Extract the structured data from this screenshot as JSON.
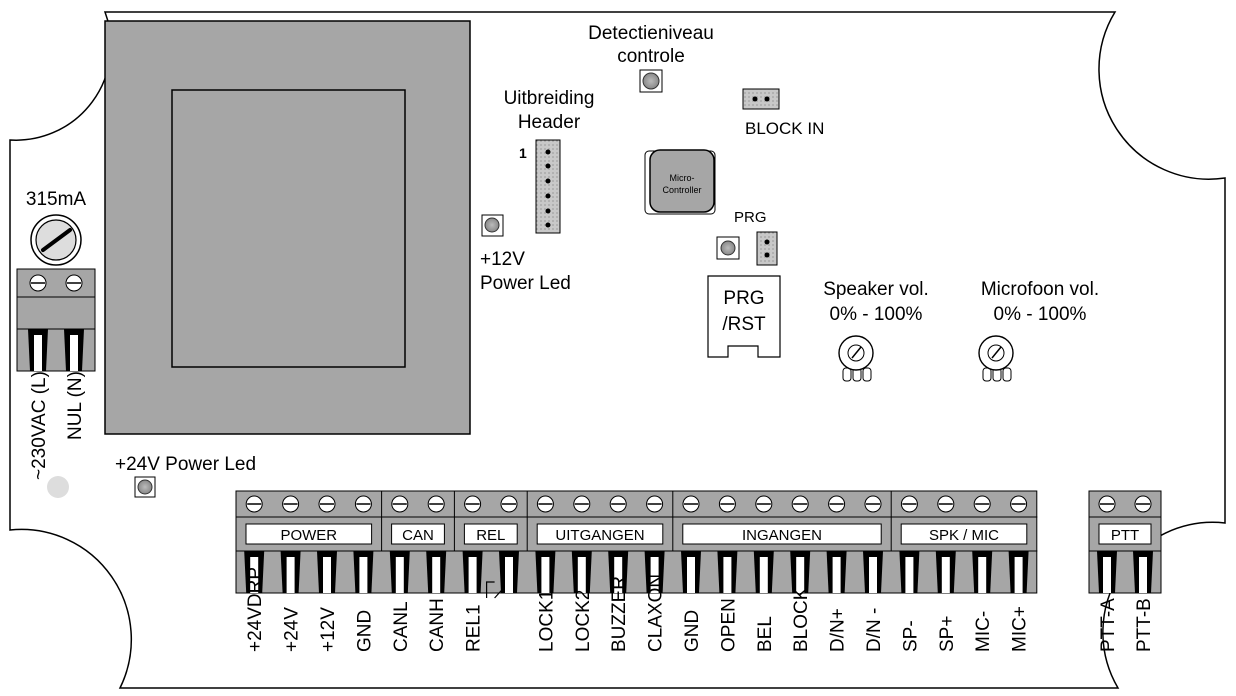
{
  "labels": {
    "detect_line1": "Detectieniveau",
    "detect_line2": "controle",
    "uitbreiding_line1": "Uitbreiding",
    "uitbreiding_line2": "Header",
    "header_pin1": "1",
    "block_in": "BLOCK IN",
    "mcu_line1": "Micro-",
    "mcu_line2": "Controller",
    "prg": "PRG",
    "plus12v_line1": "+12V",
    "plus12v_line2": "Power Led",
    "prg_rst_line1": "PRG",
    "prg_rst_line2": "/RST",
    "speaker_line1": "Speaker vol.",
    "speaker_line2": "0% - 100%",
    "microfoon_line1": "Microfoon vol.",
    "microfoon_line2": "0% - 100%",
    "fuse": "315mA",
    "mains_l": "~230VAC (L)",
    "mains_n": "NUL (N)",
    "plus24v_led": "+24V Power Led"
  },
  "terminal_groups": [
    {
      "name": "POWER",
      "pins": [
        "+24VDRP",
        "+24V",
        "+12V",
        "GND"
      ]
    },
    {
      "name": "CAN",
      "pins": [
        "CANL",
        "CANH"
      ]
    },
    {
      "name": "REL",
      "pins": [
        "REL1",
        ""
      ]
    },
    {
      "name": "UITGANGEN",
      "pins": [
        "LOCK1",
        "LOCK2",
        "BUZZER",
        "CLAXON"
      ]
    },
    {
      "name": "INGANGEN",
      "pins": [
        "GND",
        "OPEN",
        "BEL",
        "BLOCK",
        "D/N+",
        "D/N -"
      ]
    },
    {
      "name": "SPK / MIC",
      "pins": [
        "SP-",
        "SP+",
        "MIC-",
        "MIC+"
      ]
    }
  ],
  "ptt_group": {
    "name": "PTT",
    "pins": [
      "PTT-A",
      "PTT-B"
    ]
  }
}
